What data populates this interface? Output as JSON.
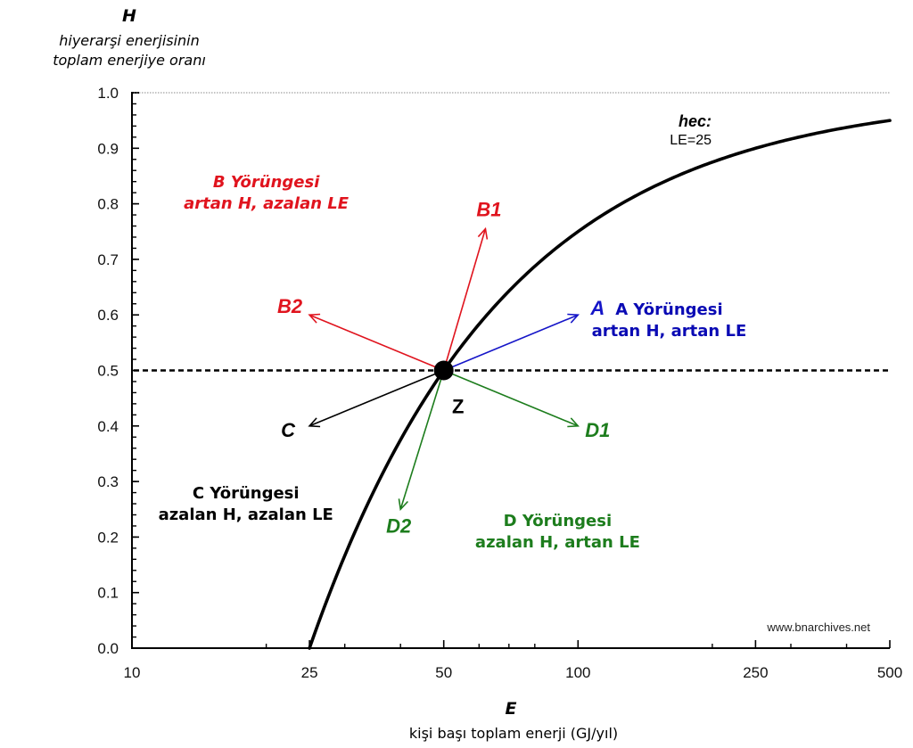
{
  "chart_data": {
    "type": "line",
    "title": "",
    "y_axis": {
      "variable": "H",
      "label_lines": [
        "hiyerarşi enerjisinin",
        "toplam enerjiye oranı"
      ],
      "scale": "linear",
      "range": [
        0.0,
        1.0
      ],
      "major_ticks": [
        0.0,
        0.1,
        0.2,
        0.3,
        0.4,
        0.5,
        0.6,
        0.7,
        0.8,
        0.9,
        1.0
      ],
      "tick_labels": [
        "0.0",
        "0.1",
        "0.2",
        "0.3",
        "0.4",
        "0.5",
        "0.6",
        "0.7",
        "0.8",
        "0.9",
        "1.0"
      ],
      "minor_step": 0.02
    },
    "x_axis": {
      "variable": "E",
      "label": "kişi başı toplam enerji (GJ/yıl)",
      "scale": "log",
      "range": [
        10,
        500
      ],
      "major_ticks": [
        10,
        25,
        50,
        100,
        250,
        500
      ],
      "tick_labels": [
        "10",
        "25",
        "50",
        "100",
        "250",
        "500"
      ],
      "minor_ticks": [
        20,
        30,
        40,
        60,
        70,
        80,
        200,
        300,
        400
      ]
    },
    "grid": false,
    "reference_lines": [
      {
        "name": "h-1.0",
        "H": 1.0,
        "style": "dotted"
      },
      {
        "name": "h-0.5",
        "H": 0.5,
        "style": "dashed"
      }
    ],
    "series": [
      {
        "name": "hec",
        "formula": "H = 1 - LE/E",
        "LE": 25,
        "x": [
          25,
          30,
          35,
          40,
          50,
          60,
          75,
          100,
          150,
          200,
          250,
          300,
          400,
          500
        ],
        "y": [
          0.0,
          0.167,
          0.286,
          0.375,
          0.5,
          0.583,
          0.667,
          0.75,
          0.833,
          0.875,
          0.9,
          0.917,
          0.938,
          0.95
        ],
        "color": "#000000"
      }
    ],
    "curve_annotation": {
      "title": "hec:",
      "subtitle": "LE=25",
      "E": 250,
      "H": 0.9
    },
    "origin_point": {
      "label": "Z",
      "E": 50,
      "H": 0.5
    },
    "arrows": [
      {
        "label": "A",
        "color": "#1515c8",
        "from": [
          50,
          0.5
        ],
        "to": [
          100,
          0.6
        ]
      },
      {
        "label": "B1",
        "color": "#e0141e",
        "from": [
          50,
          0.5
        ],
        "to": [
          62,
          0.755
        ]
      },
      {
        "label": "B2",
        "color": "#e0141e",
        "from": [
          50,
          0.5
        ],
        "to": [
          25,
          0.6
        ]
      },
      {
        "label": "C",
        "color": "#000000",
        "from": [
          50,
          0.5
        ],
        "to": [
          25,
          0.4
        ]
      },
      {
        "label": "D1",
        "color": "#1d7d1d",
        "from": [
          50,
          0.5
        ],
        "to": [
          100,
          0.4
        ]
      },
      {
        "label": "D2",
        "color": "#1d7d1d",
        "from": [
          50,
          0.5
        ],
        "to": [
          40,
          0.25
        ]
      }
    ],
    "regions": [
      {
        "name": "A",
        "lines": [
          "A Yörüngesi",
          "artan H, artan LE"
        ],
        "color": "#0a0ab4",
        "italic": false,
        "E": 160,
        "H": 0.6
      },
      {
        "name": "B",
        "lines": [
          "B Yörüngesi",
          "artan H, azalan LE"
        ],
        "color": "#e0141e",
        "italic": true,
        "E": 20,
        "H": 0.83
      },
      {
        "name": "C",
        "lines": [
          "C Yörüngesi",
          "azalan H, azalan LE"
        ],
        "color": "#000000",
        "italic": false,
        "E": 18,
        "H": 0.27
      },
      {
        "name": "D",
        "lines": [
          "D Yörüngesi",
          "azalan H, artan LE"
        ],
        "color": "#1d7d1d",
        "italic": false,
        "E": 90,
        "H": 0.22
      }
    ],
    "source": "www.bnarchives.net"
  }
}
